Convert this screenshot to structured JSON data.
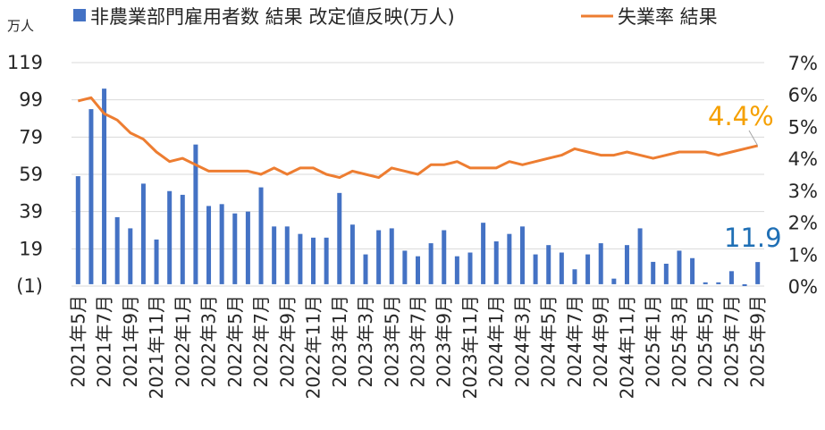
{
  "chart_data": {
    "type": "bar+line",
    "left_axis_unit": "万人",
    "left_ticks": [
      "(1)",
      "19",
      "39",
      "59",
      "79",
      "99",
      "119"
    ],
    "left_tick_values": [
      -1,
      19,
      39,
      59,
      79,
      99,
      119
    ],
    "left_ylim": [
      -1,
      119
    ],
    "right_ticks": [
      "0%",
      "1%",
      "2%",
      "3%",
      "4%",
      "5%",
      "6%",
      "7%"
    ],
    "right_tick_values": [
      0,
      1,
      2,
      3,
      4,
      5,
      6,
      7
    ],
    "right_ylim": [
      0,
      7
    ],
    "gridlines": true,
    "legend_position": "top",
    "negative_tick_color": "#C00000",
    "series": [
      {
        "name": "非農業部門雇用者数 結果 改定値反映(万人)",
        "type": "bar",
        "axis": "left",
        "color": "#4472C4",
        "values": [
          58,
          94,
          105,
          36,
          30,
          54,
          24,
          50,
          48,
          75,
          42,
          43,
          38,
          39,
          52,
          31,
          31,
          27,
          25,
          25,
          49,
          32,
          16,
          29,
          30,
          18,
          15,
          22,
          29,
          15,
          17,
          33,
          23,
          27,
          31,
          16,
          21,
          17,
          8,
          16,
          22,
          3,
          21,
          30,
          12,
          11,
          18,
          14,
          1,
          1,
          7,
          -1,
          11.9
        ]
      },
      {
        "name": "失業率 結果",
        "type": "line",
        "axis": "right",
        "color": "#ED7D31",
        "values": [
          5.8,
          5.9,
          5.4,
          5.2,
          4.8,
          4.6,
          4.2,
          3.9,
          4.0,
          3.8,
          3.6,
          3.6,
          3.6,
          3.6,
          3.5,
          3.7,
          3.5,
          3.7,
          3.7,
          3.5,
          3.4,
          3.6,
          3.5,
          3.4,
          3.7,
          3.6,
          3.5,
          3.8,
          3.8,
          3.9,
          3.7,
          3.7,
          3.7,
          3.9,
          3.8,
          3.9,
          4.0,
          4.1,
          4.3,
          4.2,
          4.1,
          4.1,
          4.2,
          4.1,
          4.0,
          4.1,
          4.2,
          4.2,
          4.2,
          4.1,
          4.2,
          4.3,
          4.4
        ]
      }
    ],
    "x_labels_shown": [
      "2021年5月",
      "2021年7月",
      "2021年9月",
      "2021年11月",
      "2022年1月",
      "2022年3月",
      "2022年5月",
      "2022年7月",
      "2022年9月",
      "2022年11月",
      "2023年1月",
      "2023年3月",
      "2023年5月",
      "2023年7月",
      "2023年9月",
      "2023年11月",
      "2024年1月",
      "2024年3月",
      "2024年5月",
      "2024年7月",
      "2024年9月",
      "2024年11月",
      "2025年1月",
      "2025年3月",
      "2025年5月",
      "2025年7月",
      "2025年9月"
    ],
    "annotations": [
      {
        "text": "4.4%",
        "series": "失業率 結果",
        "color": "#F5A000"
      },
      {
        "text": "11.9",
        "series": "非農業部門雇用者数 結果 改定値反映(万人)",
        "color": "#1F6FB5"
      }
    ]
  }
}
